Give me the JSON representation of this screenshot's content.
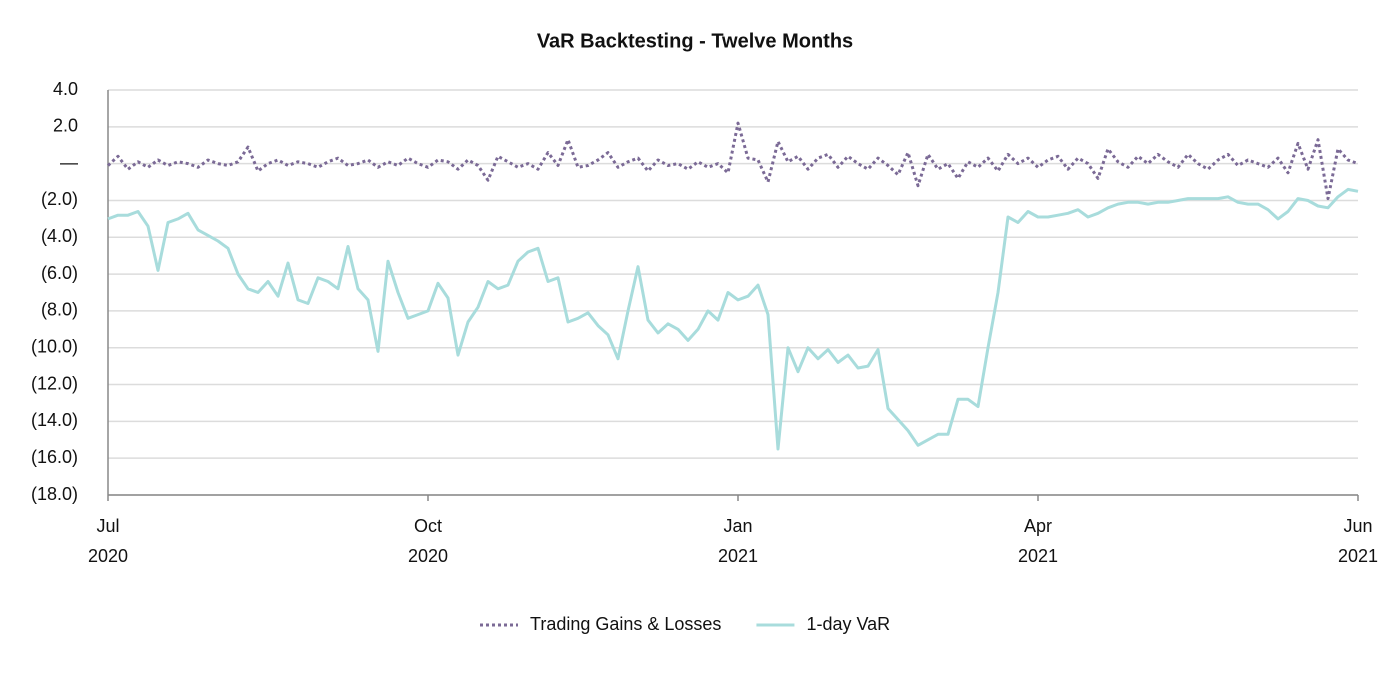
{
  "chart_data": {
    "type": "line",
    "title": "VaR Backtesting - Twelve Months",
    "categories": [
      "Jul 2020",
      null,
      null,
      null,
      null,
      null,
      null,
      null,
      null,
      null,
      null,
      null,
      null,
      null,
      null,
      null,
      null,
      null,
      null,
      null,
      null,
      null,
      null,
      null,
      null,
      null,
      null,
      null,
      null,
      null,
      null,
      null,
      "Oct 2020",
      null,
      null,
      null,
      null,
      null,
      null,
      null,
      null,
      null,
      null,
      null,
      null,
      null,
      null,
      null,
      null,
      null,
      null,
      null,
      null,
      null,
      null,
      null,
      null,
      null,
      null,
      null,
      null,
      null,
      null,
      "Jan 2021",
      null,
      null,
      null,
      null,
      null,
      null,
      null,
      null,
      null,
      null,
      null,
      null,
      null,
      null,
      null,
      null,
      null,
      null,
      null,
      null,
      null,
      null,
      null,
      null,
      null,
      null,
      null,
      null,
      null,
      "Apr 2021",
      null,
      null,
      null,
      null,
      null,
      null,
      null,
      null,
      null,
      null,
      null,
      null,
      null,
      null,
      null,
      null,
      null,
      null,
      null,
      null,
      null,
      null,
      null,
      null,
      null,
      null,
      null,
      null,
      null,
      null,
      null,
      "Jun 2021"
    ],
    "series": [
      {
        "name": "Trading Gains & Losses",
        "color": "#7b6a96",
        "dash": "dotted",
        "values": [
          -0.1,
          0.4,
          -0.3,
          0.1,
          -0.2,
          0.2,
          -0.1,
          0.1,
          0.0,
          -0.2,
          0.2,
          0.0,
          -0.1,
          0.1,
          0.9,
          -0.4,
          0.0,
          0.2,
          -0.1,
          0.1,
          0.0,
          -0.2,
          0.1,
          0.3,
          -0.1,
          0.0,
          0.2,
          -0.2,
          0.1,
          -0.1,
          0.3,
          0.0,
          -0.2,
          0.2,
          0.1,
          -0.3,
          0.2,
          -0.1,
          -0.9,
          0.4,
          0.1,
          -0.2,
          0.0,
          -0.3,
          0.6,
          -0.1,
          1.3,
          -0.2,
          -0.1,
          0.2,
          0.6,
          -0.2,
          0.1,
          0.3,
          -0.4,
          0.2,
          -0.1,
          0.0,
          -0.3,
          0.1,
          -0.2,
          0.0,
          -0.5,
          2.2,
          0.3,
          0.2,
          -1.0,
          1.2,
          0.1,
          0.4,
          -0.3,
          0.3,
          0.5,
          -0.2,
          0.4,
          0.0,
          -0.3,
          0.3,
          -0.1,
          -0.6,
          0.6,
          -1.2,
          0.5,
          -0.3,
          0.0,
          -0.8,
          0.1,
          -0.2,
          0.3,
          -0.4,
          0.5,
          0.0,
          0.3,
          -0.2,
          0.2,
          0.4,
          -0.3,
          0.3,
          0.0,
          -0.8,
          0.8,
          0.1,
          -0.2,
          0.4,
          0.0,
          0.5,
          0.1,
          -0.2,
          0.5,
          0.0,
          -0.3,
          0.2,
          0.5,
          -0.1,
          0.2,
          0.0,
          -0.2,
          0.3,
          -0.5,
          1.1,
          -0.3,
          1.3,
          -1.9,
          0.8,
          0.2,
          0.0
        ]
      },
      {
        "name": "1-day VaR",
        "color": "#a8dcdc",
        "dash": "solid",
        "values": [
          -3.0,
          -2.8,
          -2.8,
          -2.6,
          -3.4,
          -5.8,
          -3.2,
          -3.0,
          -2.7,
          -3.6,
          -3.9,
          -4.2,
          -4.6,
          -6.0,
          -6.8,
          -7.0,
          -6.4,
          -7.2,
          -5.4,
          -7.4,
          -7.6,
          -6.2,
          -6.4,
          -6.8,
          -4.5,
          -6.8,
          -7.4,
          -10.2,
          -5.3,
          -7.0,
          -8.4,
          -8.2,
          -8.0,
          -6.5,
          -7.3,
          -10.4,
          -8.6,
          -7.8,
          -6.4,
          -6.8,
          -6.6,
          -5.3,
          -4.8,
          -4.6,
          -6.4,
          -6.2,
          -8.6,
          -8.4,
          -8.1,
          -8.8,
          -9.3,
          -10.6,
          -8.0,
          -5.6,
          -8.5,
          -9.2,
          -8.7,
          -9.0,
          -9.6,
          -9.0,
          -8.0,
          -8.5,
          -7.0,
          -7.4,
          -7.2,
          -6.6,
          -8.2,
          -15.5,
          -10.0,
          -11.3,
          -10.0,
          -10.6,
          -10.1,
          -10.8,
          -10.4,
          -11.1,
          -11.0,
          -10.1,
          -13.3,
          -13.9,
          -14.5,
          -15.3,
          -15.0,
          -14.7,
          -14.7,
          -12.8,
          -12.8,
          -13.2,
          -10.0,
          -7.0,
          -2.9,
          -3.2,
          -2.6,
          -2.9,
          -2.9,
          -2.8,
          -2.7,
          -2.5,
          -2.9,
          -2.7,
          -2.4,
          -2.2,
          -2.1,
          -2.1,
          -2.2,
          -2.1,
          -2.1,
          -2.0,
          -1.9,
          -1.9,
          -1.9,
          -1.9,
          -1.8,
          -2.1,
          -2.2,
          -2.2,
          -2.5,
          -3.0,
          -2.6,
          -1.9,
          -2.0,
          -2.3,
          -2.4,
          -1.8,
          -1.4,
          -1.5
        ]
      }
    ],
    "ylim": [
      -18,
      4
    ],
    "yticks": [
      {
        "value": 4,
        "label": "4.0"
      },
      {
        "value": 2,
        "label": "2.0"
      },
      {
        "value": 0,
        "label": "—"
      },
      {
        "value": -2,
        "label": "(2.0)"
      },
      {
        "value": -4,
        "label": "(4.0)"
      },
      {
        "value": -6,
        "label": "(6.0)"
      },
      {
        "value": -8,
        "label": "(8.0)"
      },
      {
        "value": -10,
        "label": "(10.0)"
      },
      {
        "value": -12,
        "label": "(12.0)"
      },
      {
        "value": -14,
        "label": "(14.0)"
      },
      {
        "value": -16,
        "label": "(16.0)"
      },
      {
        "value": -18,
        "label": "(18.0)"
      }
    ],
    "grid": true,
    "legend": "bottom"
  }
}
